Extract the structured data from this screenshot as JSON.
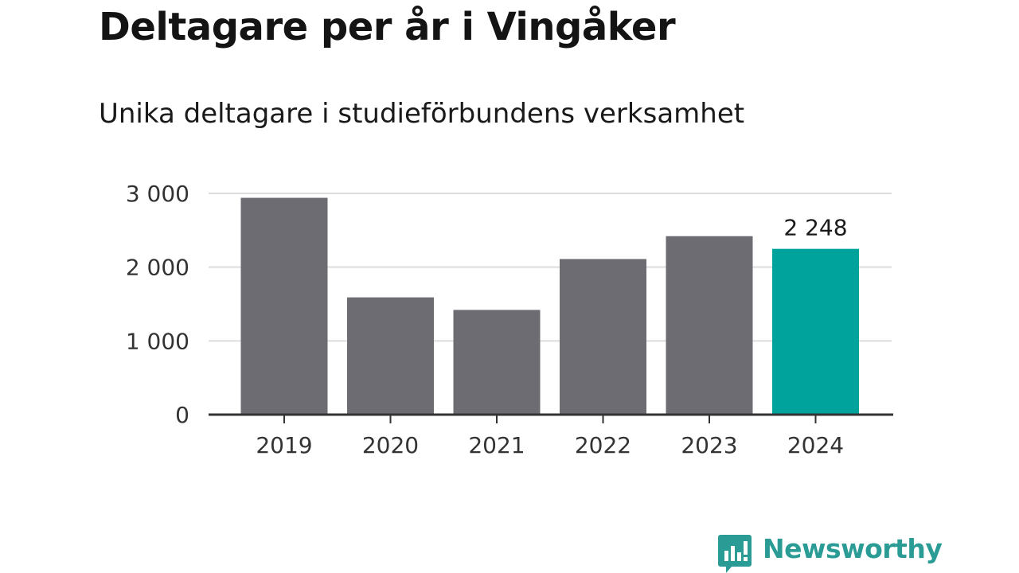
{
  "title": "Deltagare per år i Vingåker",
  "subtitle": "Unika deltagare i studieförbundens verksamhet",
  "brand": {
    "name": "Newsworthy",
    "color": "#2b9c95"
  },
  "colors": {
    "bar": "#6d6c72",
    "highlight": "#00a39b",
    "grid": "#dcdcdc",
    "axis": "#333333"
  },
  "chart_data": {
    "type": "bar",
    "title": "Deltagare per år i Vingåker",
    "subtitle": "Unika deltagare i studieförbundens verksamhet",
    "categories": [
      "2019",
      "2020",
      "2021",
      "2022",
      "2023",
      "2024"
    ],
    "values": [
      2940,
      1590,
      1420,
      2110,
      2420,
      2248
    ],
    "highlight_index": 5,
    "data_labels": [
      {
        "index": 5,
        "text": "2 248"
      }
    ],
    "yticks": [
      {
        "value": 0,
        "label": "0"
      },
      {
        "value": 1000,
        "label": "1 000"
      },
      {
        "value": 2000,
        "label": "2 000"
      },
      {
        "value": 3000,
        "label": "3 000"
      }
    ],
    "ylim": [
      0,
      3000
    ],
    "grid": true,
    "xlabel": "",
    "ylabel": ""
  }
}
